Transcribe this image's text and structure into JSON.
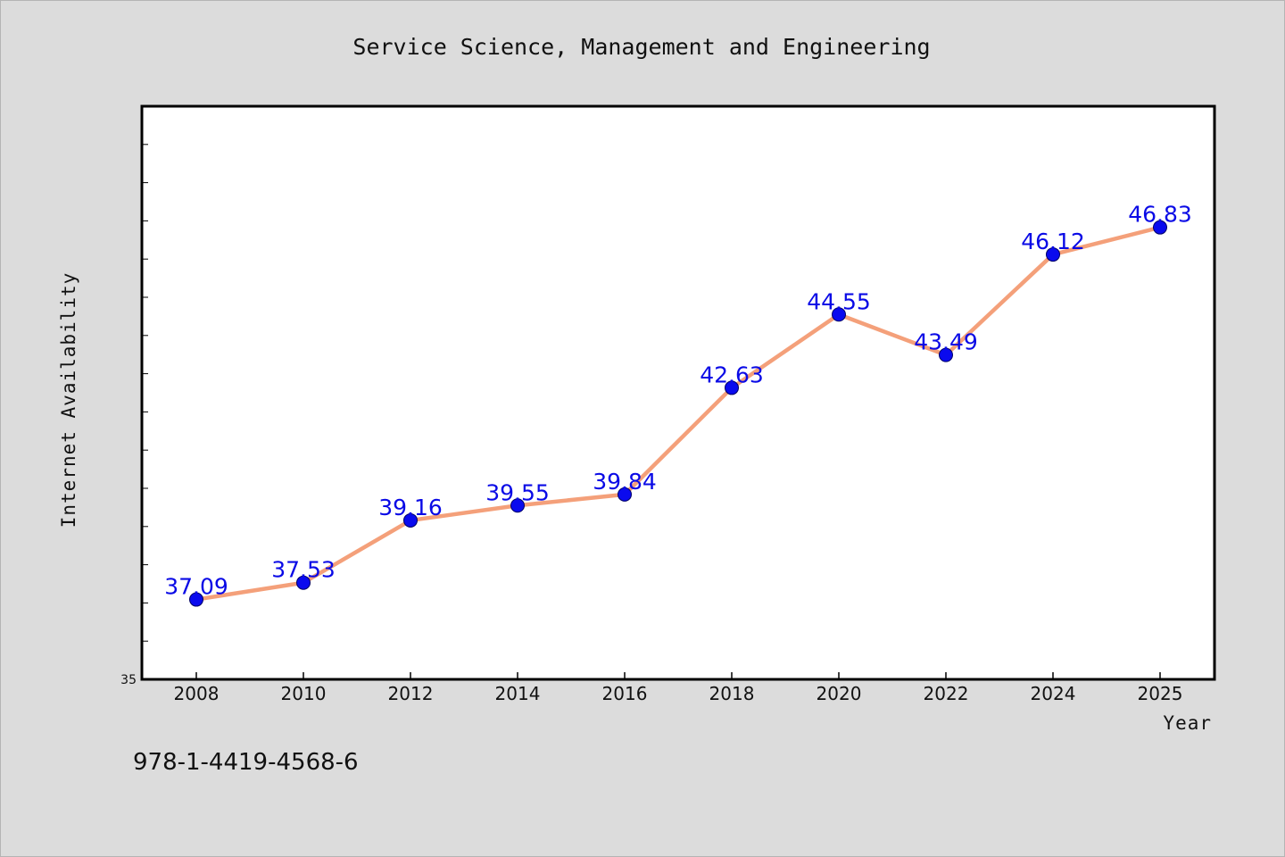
{
  "chart_data": {
    "type": "line",
    "title": "Service Science, Management and Engineering",
    "xlabel": "Year",
    "ylabel": "Internet Availability",
    "categories": [
      "2008",
      "2010",
      "2012",
      "2014",
      "2016",
      "2018",
      "2020",
      "2022",
      "2024",
      "2025"
    ],
    "series": [
      {
        "values": [
          37.09,
          37.53,
          39.16,
          39.55,
          39.84,
          42.63,
          44.55,
          43.49,
          46.12,
          46.83
        ]
      }
    ],
    "ylim": [
      35,
      50
    ],
    "y_tick_labels": [
      "35"
    ],
    "grid": false,
    "legend": "none",
    "colors": {
      "line": "#f4a07a",
      "marker": "#0a0aee",
      "data_label": "#0a0ae6",
      "plot_background": "#ffffff",
      "page_background": "#dcdcdc"
    }
  },
  "footnote": "978-1-4419-4568-6"
}
